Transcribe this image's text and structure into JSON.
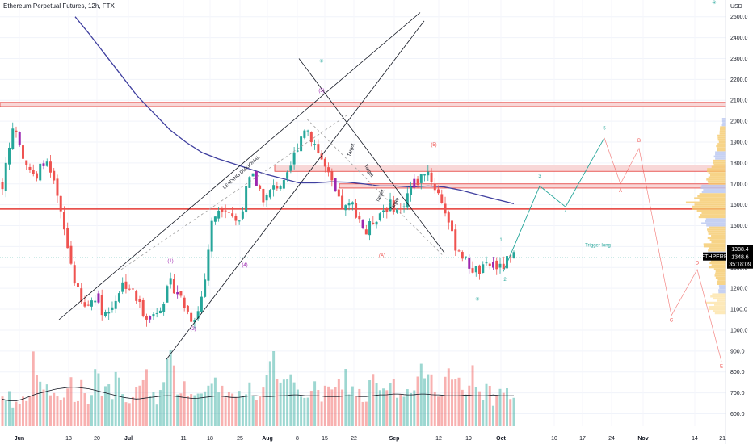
{
  "header": {
    "title": "Ethereum Perpetual Futures, 12h, FTX",
    "currency": "USD"
  },
  "colors": {
    "up": "#26a69a",
    "down": "#ef5350",
    "highlight": "#9c27b0",
    "ma": "#3f3f9f",
    "wave_main": "#9c27b0",
    "wave_green": "#26a69a",
    "wave_red": "#ef5350",
    "resistance": "#e53935",
    "zone_fill": "#f8d7d7",
    "trigger": "#26a69a",
    "profile_up": "#f5c96a",
    "profile_alt": "#b8c6f0",
    "price_tag": "#26a69a",
    "level_tag": "#4caf50"
  },
  "chart_data": {
    "type": "candlestick",
    "title": "Ethereum Perpetual Futures, 12h, FTX",
    "y_axis": {
      "ticks": [
        600,
        700,
        800,
        900,
        1000,
        1100,
        1200,
        1300,
        1400,
        1500,
        1600,
        1700,
        1800,
        1900,
        2000,
        2100,
        2200,
        2300,
        2400,
        2500
      ],
      "tick_labels": [
        "600.0",
        "700.0",
        "800.0",
        "900.0",
        "1000.0",
        "1100.0",
        "1200.0",
        "1300.0",
        "1400.0",
        "1500.0",
        "1600.0",
        "1700.0",
        "1800.0",
        "1900.0",
        "2000.0",
        "2100.0",
        "2200.0",
        "2300.0",
        "2400.0",
        "2500.0"
      ],
      "range": [
        540,
        2580
      ]
    },
    "x_axis": {
      "labels": [
        "Jun",
        "13",
        "20",
        "Jul",
        "11",
        "18",
        "25",
        "Aug",
        "8",
        "15",
        "22",
        "Sep",
        "12",
        "19",
        "Oct",
        "10",
        "17",
        "24",
        "Nov",
        "14",
        "21"
      ]
    },
    "close_anchors": [
      1700,
      1900,
      1980,
      1850,
      1780,
      1700,
      1820,
      1760,
      1650,
      1500,
      1350,
      1200,
      1100,
      1130,
      1180,
      1080,
      1090,
      1170,
      1230,
      1200,
      1140,
      1090,
      1060,
      1100,
      1150,
      1220,
      1190,
      1120,
      1060,
      1080,
      1220,
      1500,
      1580,
      1600,
      1560,
      1500,
      1640,
      1740,
      1690,
      1620,
      1670,
      1700,
      1690,
      1800,
      1900,
      1980,
      1920,
      1850,
      1770,
      1690,
      1610,
      1580,
      1600,
      1540,
      1460,
      1520,
      1560,
      1590,
      1600,
      1560,
      1640,
      1700,
      1720,
      1780,
      1700,
      1640,
      1560,
      1420,
      1380,
      1320,
      1290,
      1280,
      1300,
      1320,
      1290,
      1330,
      1349
    ],
    "volume_anchors": [
      0.35,
      0.4,
      0.25,
      0.3,
      0.5,
      0.9,
      0.45,
      0.4,
      0.35,
      0.3,
      0.6,
      0.35,
      0.5,
      0.3,
      0.8,
      0.45,
      0.4,
      0.55,
      0.35,
      0.3,
      0.4,
      0.7,
      0.45,
      0.35,
      0.5,
      0.9,
      0.5,
      0.55,
      0.45,
      0.35,
      0.4,
      0.75,
      0.4,
      0.45,
      0.3,
      0.55,
      0.4,
      0.5,
      0.35,
      0.45,
      0.9,
      0.4,
      0.5,
      0.55,
      0.45,
      0.4,
      0.5,
      0.35,
      0.45,
      0.4,
      0.5,
      0.6,
      0.45,
      0.4,
      0.35,
      0.55,
      0.45,
      0.4,
      0.5,
      0.35,
      0.4,
      0.45,
      0.5,
      0.95,
      0.55,
      0.4,
      0.85,
      0.45,
      0.5,
      0.35,
      0.75,
      0.4,
      0.45,
      0.35,
      0.4,
      0.45,
      0.35
    ],
    "volume_ma_anchors": [
      0.32,
      0.3,
      0.3,
      0.32,
      0.35,
      0.38,
      0.4,
      0.42,
      0.44,
      0.45,
      0.46,
      0.46,
      0.45,
      0.44,
      0.42,
      0.4,
      0.38,
      0.36,
      0.34,
      0.33,
      0.32,
      0.33,
      0.34,
      0.35,
      0.36,
      0.36,
      0.35,
      0.34,
      0.33,
      0.33,
      0.34,
      0.35,
      0.36,
      0.35,
      0.34,
      0.34,
      0.35,
      0.36,
      0.36,
      0.35,
      0.35,
      0.36,
      0.36,
      0.37,
      0.37,
      0.36,
      0.36,
      0.36,
      0.35,
      0.35,
      0.35,
      0.36,
      0.36,
      0.35,
      0.35,
      0.36,
      0.37,
      0.37,
      0.38,
      0.38,
      0.37,
      0.37,
      0.38,
      0.38,
      0.37,
      0.37,
      0.36,
      0.36,
      0.36,
      0.37,
      0.36,
      0.36,
      0.36,
      0.37,
      0.36,
      0.36,
      0.36
    ],
    "moving_average": {
      "points": [
        [
          93,
          2500
        ],
        [
          110,
          2420
        ],
        [
          130,
          2320
        ],
        [
          150,
          2220
        ],
        [
          170,
          2120
        ],
        [
          190,
          2040
        ],
        [
          210,
          1960
        ],
        [
          230,
          1900
        ],
        [
          250,
          1850
        ],
        [
          270,
          1820
        ],
        [
          290,
          1795
        ],
        [
          310,
          1770
        ],
        [
          330,
          1745
        ],
        [
          350,
          1725
        ],
        [
          370,
          1705
        ],
        [
          390,
          1705
        ],
        [
          410,
          1710
        ],
        [
          430,
          1708
        ],
        [
          450,
          1700
        ],
        [
          470,
          1690
        ],
        [
          490,
          1690
        ],
        [
          510,
          1685
        ],
        [
          530,
          1690
        ],
        [
          550,
          1685
        ],
        [
          570,
          1670
        ],
        [
          590,
          1650
        ],
        [
          610,
          1630
        ],
        [
          636,
          1605
        ]
      ]
    },
    "horizontal_levels": [
      {
        "price": 2070,
        "price_to": 2090,
        "kind": "zone",
        "from_x": 0
      },
      {
        "price": 1580,
        "kind": "line",
        "from_x": 0
      },
      {
        "price": 1760,
        "price_to": 1790,
        "kind": "zone",
        "from_x": 340
      },
      {
        "price": 1680,
        "price_to": 1700,
        "kind": "zone",
        "from_x": 420
      },
      {
        "price": 1388.4,
        "kind": "trigger",
        "from_x": 636,
        "label": "Trigger long"
      }
    ],
    "trendlines": [
      {
        "points": [
          [
            73,
            1050
          ],
          [
            520,
            2520
          ]
        ],
        "label": "LEADING DIAGONAL"
      },
      {
        "points": [
          [
            206,
            860
          ],
          [
            525,
            2480
          ]
        ]
      },
      {
        "points": [
          [
            370,
            2300
          ],
          [
            550,
            1370
          ]
        ]
      },
      {
        "points": [
          [
            150,
            1290
          ],
          [
            430,
            2030
          ]
        ],
        "dashed": true
      },
      {
        "points": [
          [
            380,
            2010
          ],
          [
            550,
            1350
          ]
        ],
        "dashed": true
      }
    ],
    "wave_labels": [
      {
        "text": "①",
        "x": 398,
        "price": 2280,
        "color": "wave_green"
      },
      {
        "text": "(5)",
        "x": 398,
        "price": 2140,
        "color": "wave_main"
      },
      {
        "text": "(1)",
        "x": 211,
        "price": 1325,
        "color": "wave_main"
      },
      {
        "text": "(2)",
        "x": 239,
        "price": 1000,
        "color": "wave_main"
      },
      {
        "text": "(4)",
        "x": 303,
        "price": 1305,
        "color": "wave_main"
      },
      {
        "text": "(5)",
        "x": 537,
        "price": 1880,
        "color": "wave_red"
      },
      {
        "text": "(A)",
        "x": 473,
        "price": 1350,
        "color": "wave_red"
      },
      {
        "text": "②",
        "x": 591,
        "price": 1140,
        "color": "wave_green"
      },
      {
        "text": "1",
        "x": 620,
        "price": 1425,
        "color": "wave_green"
      },
      {
        "text": "2",
        "x": 625,
        "price": 1235,
        "color": "wave_green"
      },
      {
        "text": "3",
        "x": 668,
        "price": 1730,
        "color": "wave_green"
      },
      {
        "text": "4",
        "x": 700,
        "price": 1560,
        "color": "wave_green"
      },
      {
        "text": "5",
        "x": 748,
        "price": 1960,
        "color": "wave_green"
      },
      {
        "text": "A",
        "x": 768,
        "price": 1660,
        "color": "wave_red"
      },
      {
        "text": "B",
        "x": 791,
        "price": 1900,
        "color": "wave_red"
      },
      {
        "text": "C",
        "x": 831,
        "price": 1040,
        "color": "wave_red"
      },
      {
        "text": "D",
        "x": 863,
        "price": 1315,
        "color": "wave_red"
      },
      {
        "text": "E",
        "x": 893,
        "price": 820,
        "color": "wave_red"
      },
      {
        "text": "④",
        "x": 884,
        "price": 2560,
        "color": "wave_green"
      }
    ],
    "diagonal_texts": [
      {
        "text": "LEADING DIAGONAL",
        "x": 300,
        "price": 1750,
        "angle": -42
      },
      {
        "text": "Target",
        "x": 436,
        "price": 1860,
        "angle": -72
      },
      {
        "text": "Target",
        "x": 455,
        "price": 1760,
        "angle": 60
      },
      {
        "text": "Target",
        "x": 472,
        "price": 1640,
        "angle": -65
      },
      {
        "text": "Target",
        "x": 490,
        "price": 1600,
        "angle": -60
      }
    ],
    "projection_green": [
      [
        623,
        1280
      ],
      [
        668,
        1690
      ],
      [
        700,
        1590
      ],
      [
        748,
        1920
      ]
    ],
    "projection_red": [
      [
        748,
        1920
      ],
      [
        768,
        1700
      ],
      [
        791,
        1870
      ],
      [
        831,
        1070
      ],
      [
        863,
        1290
      ],
      [
        893,
        850
      ]
    ],
    "price_tags": [
      {
        "label": "1388.4",
        "price": 1388.4,
        "color": "level_tag"
      },
      {
        "text_top": "ETHPERP",
        "label": "1348.6",
        "sub": "35:18:09",
        "price": 1348.6,
        "color": "price_tag"
      }
    ],
    "volume_profile": {
      "prices": [
        1180,
        1220,
        1260,
        1300,
        1340,
        1380,
        1420,
        1460,
        1500,
        1540,
        1580,
        1620,
        1660,
        1700,
        1740,
        1780,
        1820,
        1860,
        1900,
        1940,
        1980
      ],
      "sizes": [
        0.2,
        0.25,
        0.3,
        0.45,
        0.5,
        0.55,
        0.45,
        0.5,
        0.6,
        0.75,
        1.0,
        0.8,
        0.65,
        0.55,
        0.5,
        0.35,
        0.3,
        0.25,
        0.2,
        0.15,
        0.1
      ]
    }
  }
}
